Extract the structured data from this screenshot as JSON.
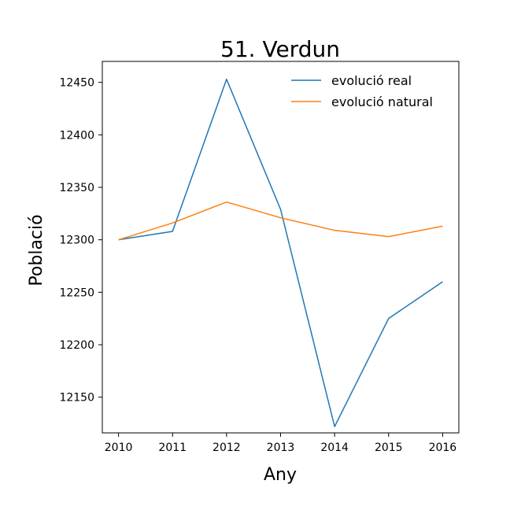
{
  "chart_data": {
    "type": "line",
    "title": "51. Verdun",
    "xlabel": "Any",
    "ylabel": "Població",
    "x": [
      2010,
      2011,
      2012,
      2013,
      2014,
      2015,
      2016
    ],
    "xlim": [
      2009.7,
      2016.3
    ],
    "ylim": [
      12116,
      12470
    ],
    "yticks": [
      12150,
      12200,
      12250,
      12300,
      12350,
      12400,
      12450
    ],
    "grid": false,
    "legend_position": "top-right",
    "series": [
      {
        "name": "evolució real",
        "color": "#1f77b4",
        "values": [
          12300,
          12308,
          12453,
          12329,
          12122,
          12225,
          12260
        ]
      },
      {
        "name": "evolució natural",
        "color": "#ff7f0e",
        "values": [
          12300,
          12316,
          12336,
          12321,
          12309,
          12303,
          12313
        ]
      }
    ]
  }
}
